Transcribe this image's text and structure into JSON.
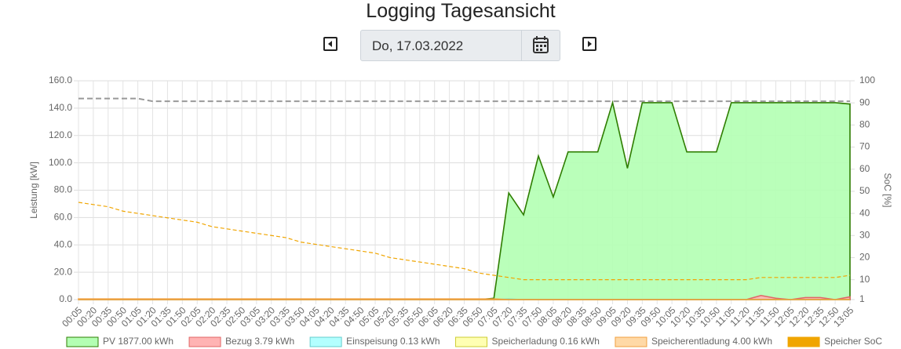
{
  "chart_data": {
    "type": "line",
    "title": "Logging Tagesansicht",
    "ylabel": "Leistung [kW]",
    "y2label": "SoC [%]",
    "categories": [
      "00:05",
      "00:20",
      "00:35",
      "00:50",
      "01:05",
      "01:20",
      "01:35",
      "01:50",
      "02:05",
      "02:20",
      "02:35",
      "02:50",
      "03:05",
      "03:20",
      "03:35",
      "03:50",
      "04:05",
      "04:20",
      "04:35",
      "04:50",
      "05:05",
      "05:20",
      "05:35",
      "05:50",
      "06:05",
      "06:20",
      "06:35",
      "06:50",
      "07:05",
      "07:20",
      "07:35",
      "07:50",
      "08:05",
      "08:20",
      "08:35",
      "08:50",
      "09:05",
      "09:20",
      "09:35",
      "09:50",
      "10:05",
      "10:20",
      "10:35",
      "10:50",
      "11:05",
      "11:20",
      "11:35",
      "11:50",
      "12:05",
      "12:20",
      "12:35",
      "12:50",
      "13:05"
    ],
    "ylim": [
      0,
      160
    ],
    "yticks": [
      {
        "value": 0,
        "label": "0.0"
      },
      {
        "value": 20,
        "label": "20.0"
      },
      {
        "value": 40,
        "label": "40.0"
      },
      {
        "value": 60,
        "label": "60.0"
      },
      {
        "value": 80,
        "label": "80.0"
      },
      {
        "value": 100,
        "label": "100.0"
      },
      {
        "value": 120,
        "label": "120.0"
      },
      {
        "value": 140,
        "label": "140.0"
      },
      {
        "value": 160,
        "label": "160.0"
      }
    ],
    "y2lim": [
      1,
      100
    ],
    "y2ticks": [
      1,
      10,
      20,
      30,
      40,
      50,
      60,
      70,
      80,
      90,
      100
    ],
    "grid": true,
    "series": [
      {
        "name": "PV 1877.00 kWh",
        "style": "area",
        "color": "#2e7d00",
        "fill": "#b3ffb3",
        "values": [
          0,
          0,
          0,
          0,
          0,
          0,
          0,
          0,
          0,
          0,
          0,
          0,
          0,
          0,
          0,
          0,
          0,
          0,
          0,
          0,
          0,
          0,
          0,
          0,
          0,
          0,
          0,
          0,
          1,
          78,
          62,
          105,
          75,
          108,
          108,
          108,
          144,
          96,
          144,
          144,
          144,
          108,
          108,
          108,
          144,
          144,
          144,
          144,
          144,
          144,
          144,
          144,
          143
        ]
      },
      {
        "name": "Bezug 3.79 kWh",
        "style": "area",
        "color": "#e06666",
        "fill": "#ffb3b3",
        "values": [
          0,
          0,
          0,
          0,
          0,
          0,
          0,
          0,
          0,
          0,
          0,
          0,
          0,
          0,
          0,
          0,
          0,
          0,
          0,
          0,
          0,
          0,
          0,
          0,
          0,
          0,
          0,
          0,
          0,
          0,
          0,
          0,
          0,
          0,
          0,
          0,
          0,
          0,
          0,
          0,
          0,
          0,
          0,
          0,
          0,
          0,
          3,
          1,
          0,
          1.5,
          1.5,
          0,
          2
        ]
      },
      {
        "name": "Einspeisung 0.13 kWh",
        "style": "area",
        "color": "#66cccc",
        "fill": "#b3ffff",
        "values": [
          0,
          0,
          0,
          0,
          0,
          0,
          0,
          0,
          0,
          0,
          0,
          0,
          0,
          0,
          0,
          0,
          0,
          0,
          0,
          0,
          0,
          0,
          0,
          0,
          0,
          0,
          0,
          0,
          0,
          0.3,
          0,
          0,
          0,
          0,
          0,
          0,
          0,
          0,
          0,
          0,
          0,
          0,
          0,
          0,
          0,
          0,
          0,
          0,
          0,
          0,
          0,
          0,
          0
        ]
      },
      {
        "name": "Speicherladung 0.16 kWh",
        "style": "area",
        "color": "#cccc33",
        "fill": "#ffffb3",
        "values": [
          0,
          0,
          0,
          0,
          0,
          0,
          0,
          0,
          0,
          0,
          0,
          0,
          0,
          0,
          0,
          0,
          0,
          0,
          0,
          0,
          0,
          0,
          0,
          0,
          0,
          0,
          0,
          0,
          0,
          0,
          0,
          0,
          0,
          0,
          0,
          0,
          0,
          0,
          0,
          0,
          0,
          0,
          0,
          0,
          0,
          0,
          0,
          0,
          0,
          0,
          0,
          0,
          0
        ]
      },
      {
        "name": "Speicherentladung 4.00 kWh",
        "style": "area",
        "color": "#f0a040",
        "fill": "#ffd9a6",
        "values": [
          0.5,
          0.5,
          0.5,
          0.5,
          0.5,
          0.5,
          0.5,
          0.5,
          0.5,
          0.5,
          0.5,
          0.5,
          0.5,
          0.5,
          0.5,
          0.5,
          0.5,
          0.5,
          0.5,
          0.5,
          0.5,
          0.5,
          0.5,
          0.5,
          0.5,
          0.5,
          0.5,
          0.5,
          0.5,
          0,
          0,
          0,
          0,
          0,
          0,
          0,
          0,
          0,
          0,
          0,
          0,
          0,
          0,
          0,
          0,
          0,
          0,
          0,
          0,
          0,
          0,
          0,
          0
        ]
      },
      {
        "name": "Speicher SoC",
        "style": "line",
        "dash": true,
        "axis": "y2",
        "color": "#f0a500",
        "values": [
          45,
          44,
          43,
          41,
          40,
          39,
          38,
          37,
          36,
          34,
          33,
          32,
          31,
          30,
          29,
          27,
          26,
          25,
          24,
          23,
          22,
          20,
          19,
          18,
          17,
          16,
          15,
          13,
          12,
          11,
          10,
          10,
          10,
          10,
          10,
          10,
          10,
          10,
          10,
          10,
          10,
          10,
          10,
          10,
          10,
          10,
          11,
          11,
          11,
          11,
          11,
          11,
          12
        ]
      },
      {
        "style": "line",
        "dash": true,
        "color": "#999999",
        "values": [
          147,
          147,
          147,
          147,
          147,
          145,
          145,
          145,
          145,
          145,
          145,
          145,
          145,
          145,
          145,
          145,
          145,
          145,
          145,
          145,
          145,
          145,
          145,
          145,
          145,
          145,
          145,
          145,
          145,
          145,
          145,
          145,
          145,
          145,
          145,
          145,
          145,
          145,
          145,
          145,
          145,
          145,
          145,
          145,
          145,
          145,
          145,
          145,
          145,
          145,
          145,
          145,
          145
        ]
      }
    ]
  },
  "date": "Do, 17.03.2022"
}
